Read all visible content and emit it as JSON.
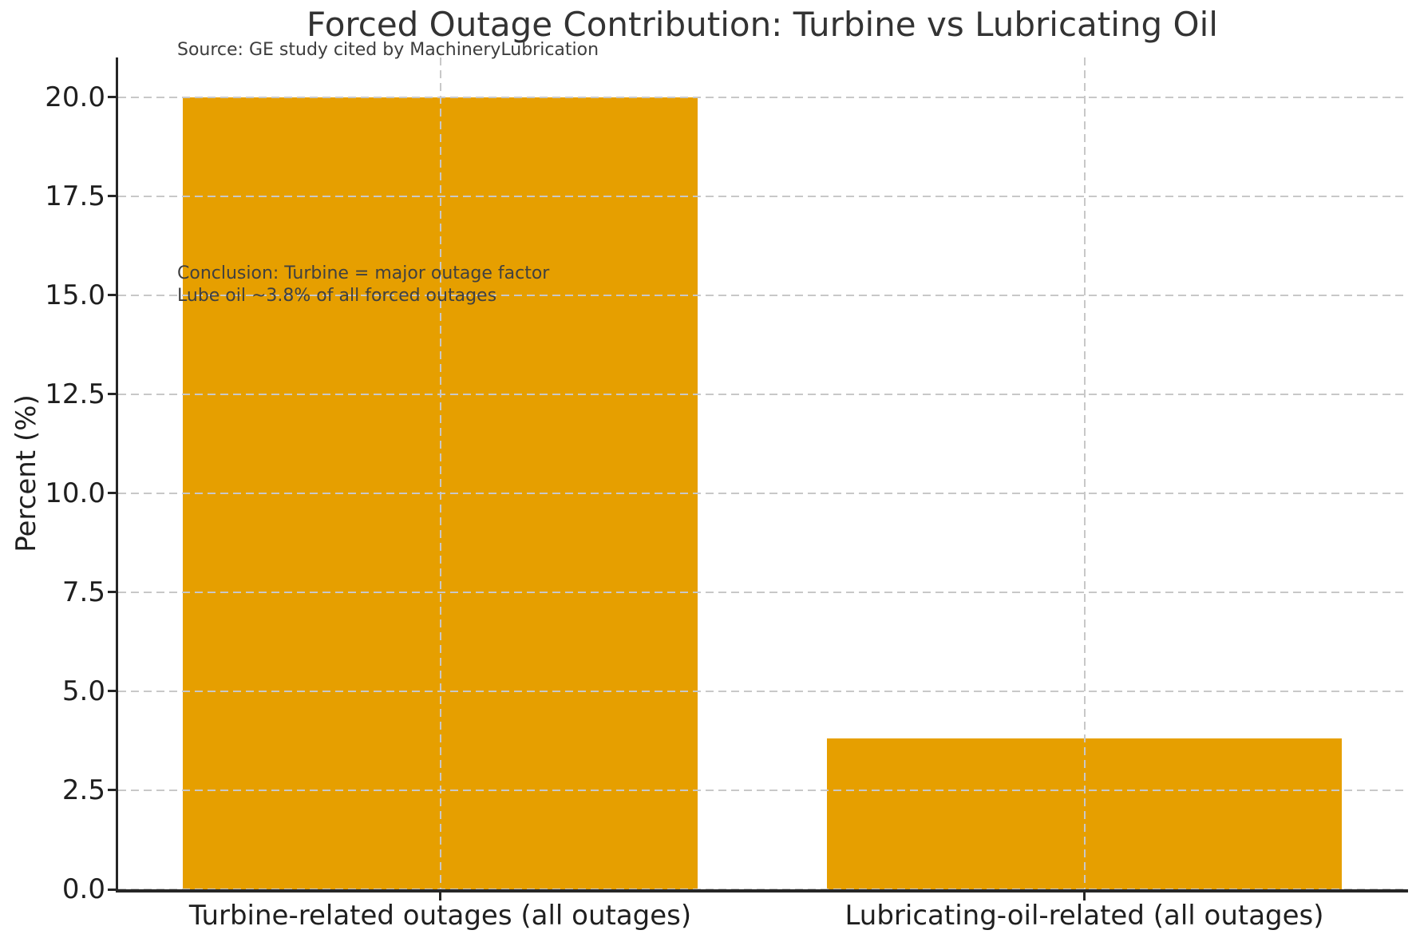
{
  "title": "Forced Outage Contribution: Turbine vs Lubricating Oil",
  "source_note": "Source: GE study cited by MachineryLubrication",
  "annotation": {
    "line1": "Conclusion: Turbine = major outage factor",
    "line2": "Lube oil ~3.8% of all forced outages"
  },
  "chart_data": {
    "type": "bar",
    "title": "Forced Outage Contribution: Turbine vs Lubricating Oil",
    "source": "Source: GE study cited by MachineryLubrication",
    "categories": [
      "Turbine-related outages (all outages)",
      "Lubricating-oil-related (all outages)"
    ],
    "values": [
      20.0,
      3.8
    ],
    "xlabel": "",
    "ylabel": "Percent (%)",
    "ylim": [
      0,
      21
    ],
    "yticks": [
      0.0,
      2.5,
      5.0,
      7.5,
      10.0,
      12.5,
      15.0,
      17.5,
      20.0
    ],
    "ytick_labels": [
      "0.0",
      "2.5",
      "5.0",
      "7.5",
      "10.0",
      "12.5",
      "15.0",
      "17.5",
      "20.0"
    ],
    "bar_width_fraction": 0.8,
    "grid": true,
    "grid_style": "dashed",
    "grid_over_bars": true,
    "legend": "none",
    "annotation_text": "Conclusion: Turbine = major outage factor\nLube oil ~3.8% of all forced outages"
  },
  "colors": {
    "bar": "#E69F00",
    "grid": "#c8c8c8",
    "axis": "#262626",
    "title_text": "#333333",
    "tick_text": "#1f1f1f",
    "annotation_text": "#404040",
    "background": "#ffffff"
  }
}
